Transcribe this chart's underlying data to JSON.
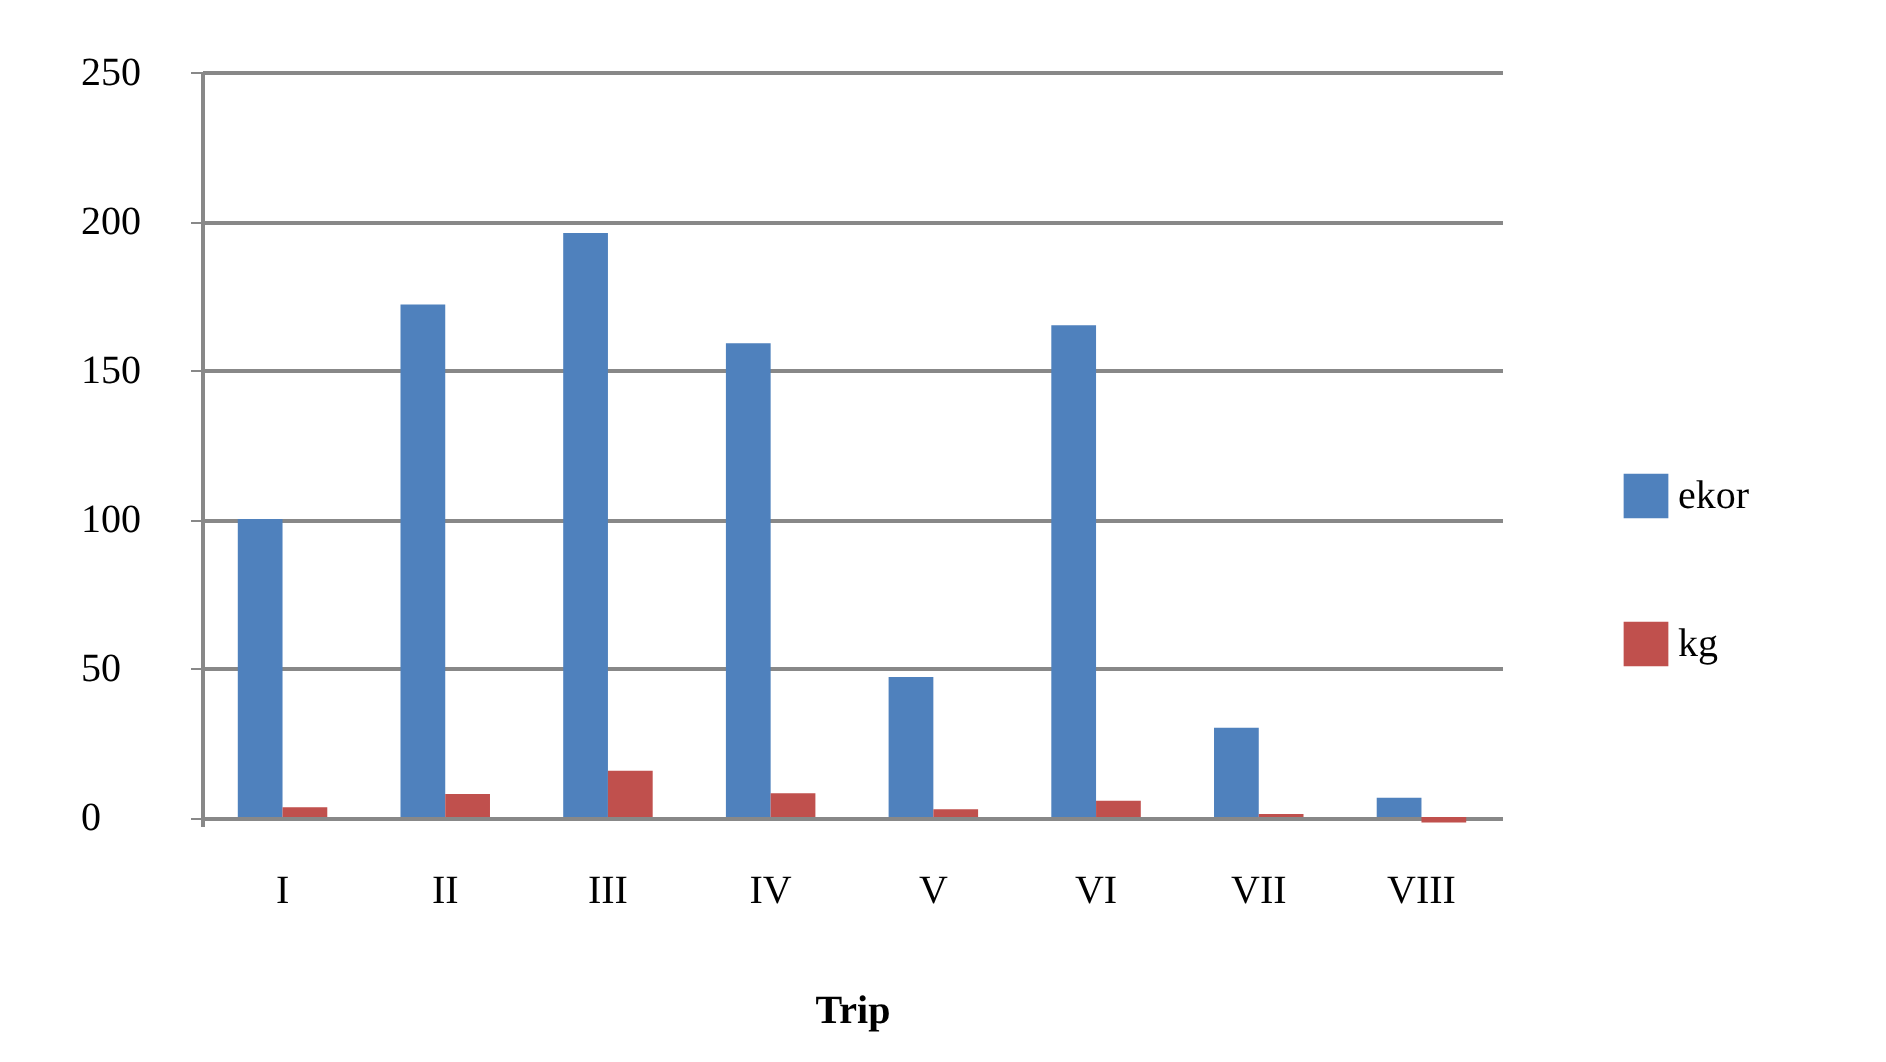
{
  "chart_data": {
    "type": "bar",
    "xlabel": "Trip",
    "categories": [
      "I",
      "II",
      "III",
      "IV",
      "V",
      "VI",
      "VII",
      "VIII"
    ],
    "series": [
      {
        "name": "ekor",
        "color": "#4f81bd",
        "values": [
          100,
          172,
          196,
          159,
          47,
          165,
          30,
          6.5
        ]
      },
      {
        "name": "kg",
        "color": "#c0504d",
        "values": [
          3.3,
          7.7,
          15.5,
          8,
          2.6,
          5.5,
          1,
          -1.8
        ]
      }
    ],
    "ylim": [
      -3,
      250
    ],
    "yticks": [
      0,
      50,
      100,
      150,
      200,
      250
    ],
    "grid": "y",
    "legend": "right"
  }
}
